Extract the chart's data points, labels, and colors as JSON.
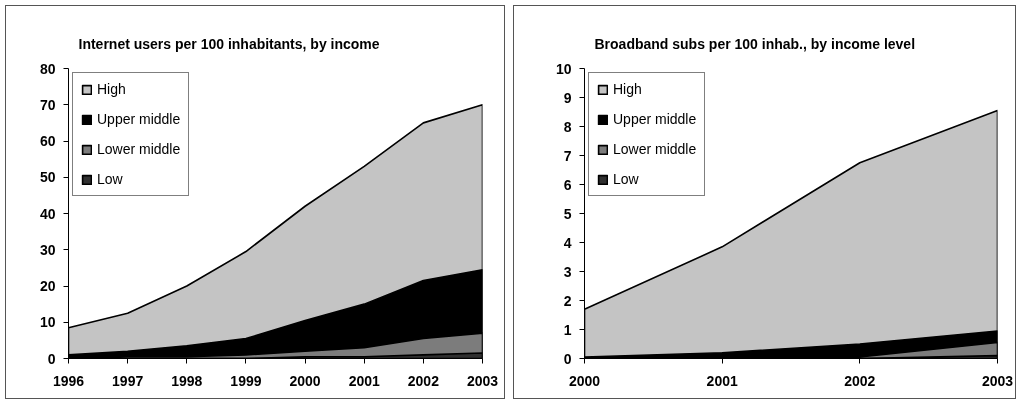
{
  "chart_data": [
    {
      "type": "area",
      "title": "Internet users per 100 inhabitants, by income",
      "x": [
        1996,
        1997,
        1998,
        1999,
        2000,
        2001,
        2002,
        2003
      ],
      "series": [
        {
          "name": "High",
          "color": "#c4c4c4",
          "values": [
            8.5,
            12.5,
            20,
            29.5,
            42,
            53,
            65,
            70
          ]
        },
        {
          "name": "Upper middle",
          "color": "#000000",
          "values": [
            1,
            2,
            3.5,
            5.5,
            10.5,
            15,
            21.5,
            24.5
          ]
        },
        {
          "name": "Lower middle",
          "color": "#7c7c7c",
          "values": [
            0,
            0.5,
            0.5,
            1,
            2,
            3,
            5.5,
            7
          ]
        },
        {
          "name": "Low",
          "color": "#303030",
          "values": [
            0,
            0,
            0,
            0,
            0.5,
            0.5,
            1,
            1.5
          ]
        }
      ],
      "xlim": [
        1996,
        2003
      ],
      "xticks": [
        1996,
        1997,
        1998,
        1999,
        2000,
        2001,
        2002,
        2003
      ],
      "ylim": [
        0,
        80
      ],
      "yticks": [
        0,
        10,
        20,
        30,
        40,
        50,
        60,
        70,
        80
      ],
      "legend": "top left"
    },
    {
      "type": "area",
      "title": "Broadband subs per 100 inhab., by income level",
      "x": [
        2000,
        2001,
        2002,
        2003
      ],
      "series": [
        {
          "name": "High",
          "color": "#c4c4c4",
          "values": [
            1.7,
            3.85,
            6.75,
            8.55
          ]
        },
        {
          "name": "Upper middle",
          "color": "#000000",
          "values": [
            0.05,
            0.2,
            0.5,
            0.95
          ]
        },
        {
          "name": "Lower middle",
          "color": "#7c7c7c",
          "values": [
            0,
            0,
            0.05,
            0.55
          ]
        },
        {
          "name": "Low",
          "color": "#303030",
          "values": [
            0,
            0,
            0,
            0.1
          ]
        }
      ],
      "xlim": [
        2000,
        2003
      ],
      "xticks": [
        2000,
        2001,
        2002,
        2003
      ],
      "ylim": [
        0,
        10
      ],
      "yticks": [
        0,
        1,
        2,
        3,
        4,
        5,
        6,
        7,
        8,
        9,
        10
      ],
      "legend": "top left"
    }
  ]
}
